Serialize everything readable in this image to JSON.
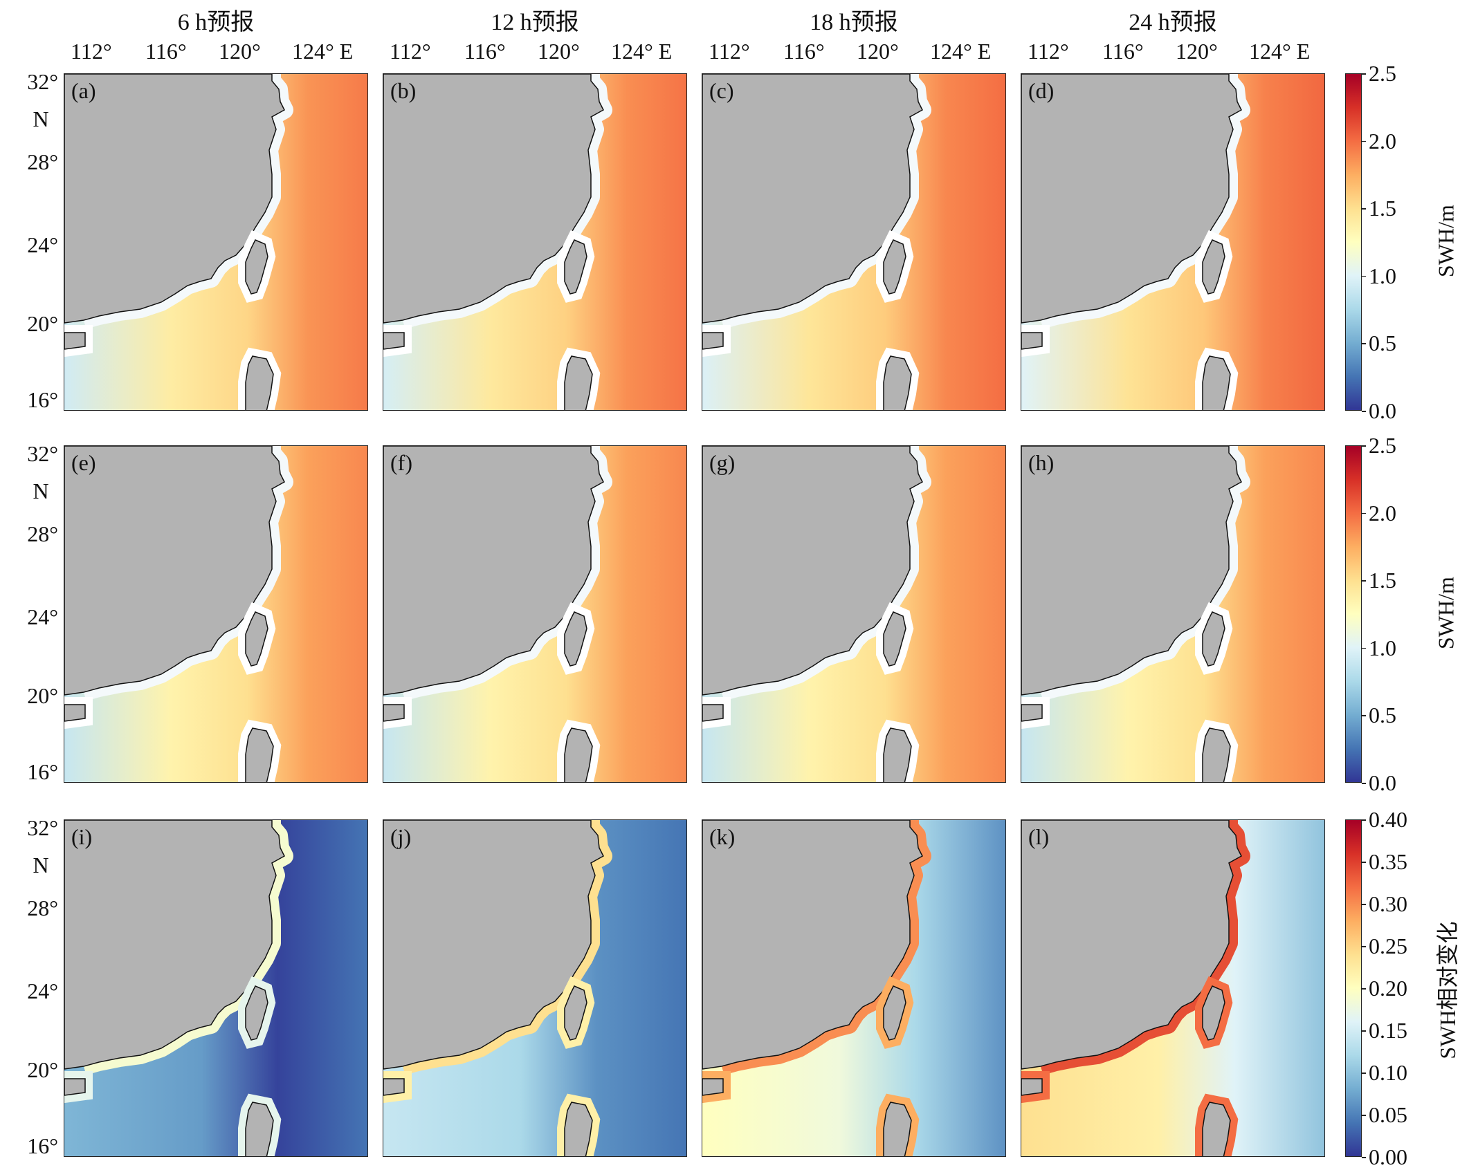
{
  "chart_data": {
    "type": "heatmap",
    "column_titles": [
      "6 h预报",
      "12 h预报",
      "18 h预报",
      "24 h预报"
    ],
    "x_tick_labels": [
      "112°",
      "116°",
      "120°",
      "124° E"
    ],
    "y_tick_labels": [
      "32°",
      "N",
      "28°",
      "24°",
      "20°",
      "16°"
    ],
    "rows": [
      {
        "panels": [
          "(a)",
          "(b)",
          "(c)",
          "(d)"
        ],
        "colorbar": {
          "label": "SWH/m",
          "ticks": [
            "2.5",
            "2.0",
            "1.5",
            "1.0",
            "0.5",
            "0.0"
          ],
          "range": [
            0,
            2.5
          ]
        },
        "field_level": [
          0.62,
          0.63,
          0.64,
          0.65
        ]
      },
      {
        "panels": [
          "(e)",
          "(f)",
          "(g)",
          "(h)"
        ],
        "colorbar": {
          "label": "SWH/m",
          "ticks": [
            "2.5",
            "2.0",
            "1.5",
            "1.0",
            "0.5",
            "0.0"
          ],
          "range": [
            0,
            2.5
          ]
        },
        "field_level": [
          0.6,
          0.6,
          0.6,
          0.6
        ]
      },
      {
        "panels": [
          "(i)",
          "(j)",
          "(k)",
          "(l)"
        ],
        "colorbar": {
          "label": "SWH相对变化",
          "ticks": [
            "0.40",
            "0.35",
            "0.30",
            "0.25",
            "0.20",
            "0.15",
            "0.10",
            "0.05",
            "0.00"
          ],
          "range": [
            0,
            0.4
          ]
        },
        "field_level": [
          0.22,
          0.35,
          0.5,
          0.6
        ]
      }
    ],
    "colormap": [
      "#313695",
      "#4575b4",
      "#74add1",
      "#abd9e9",
      "#e0f3f8",
      "#ffffbf",
      "#fee090",
      "#fdae61",
      "#f46d43",
      "#d73027",
      "#a50026"
    ],
    "land_color": "#b3b3b3",
    "xlim": [
      110,
      127
    ],
    "ylim": [
      16,
      33
    ]
  }
}
